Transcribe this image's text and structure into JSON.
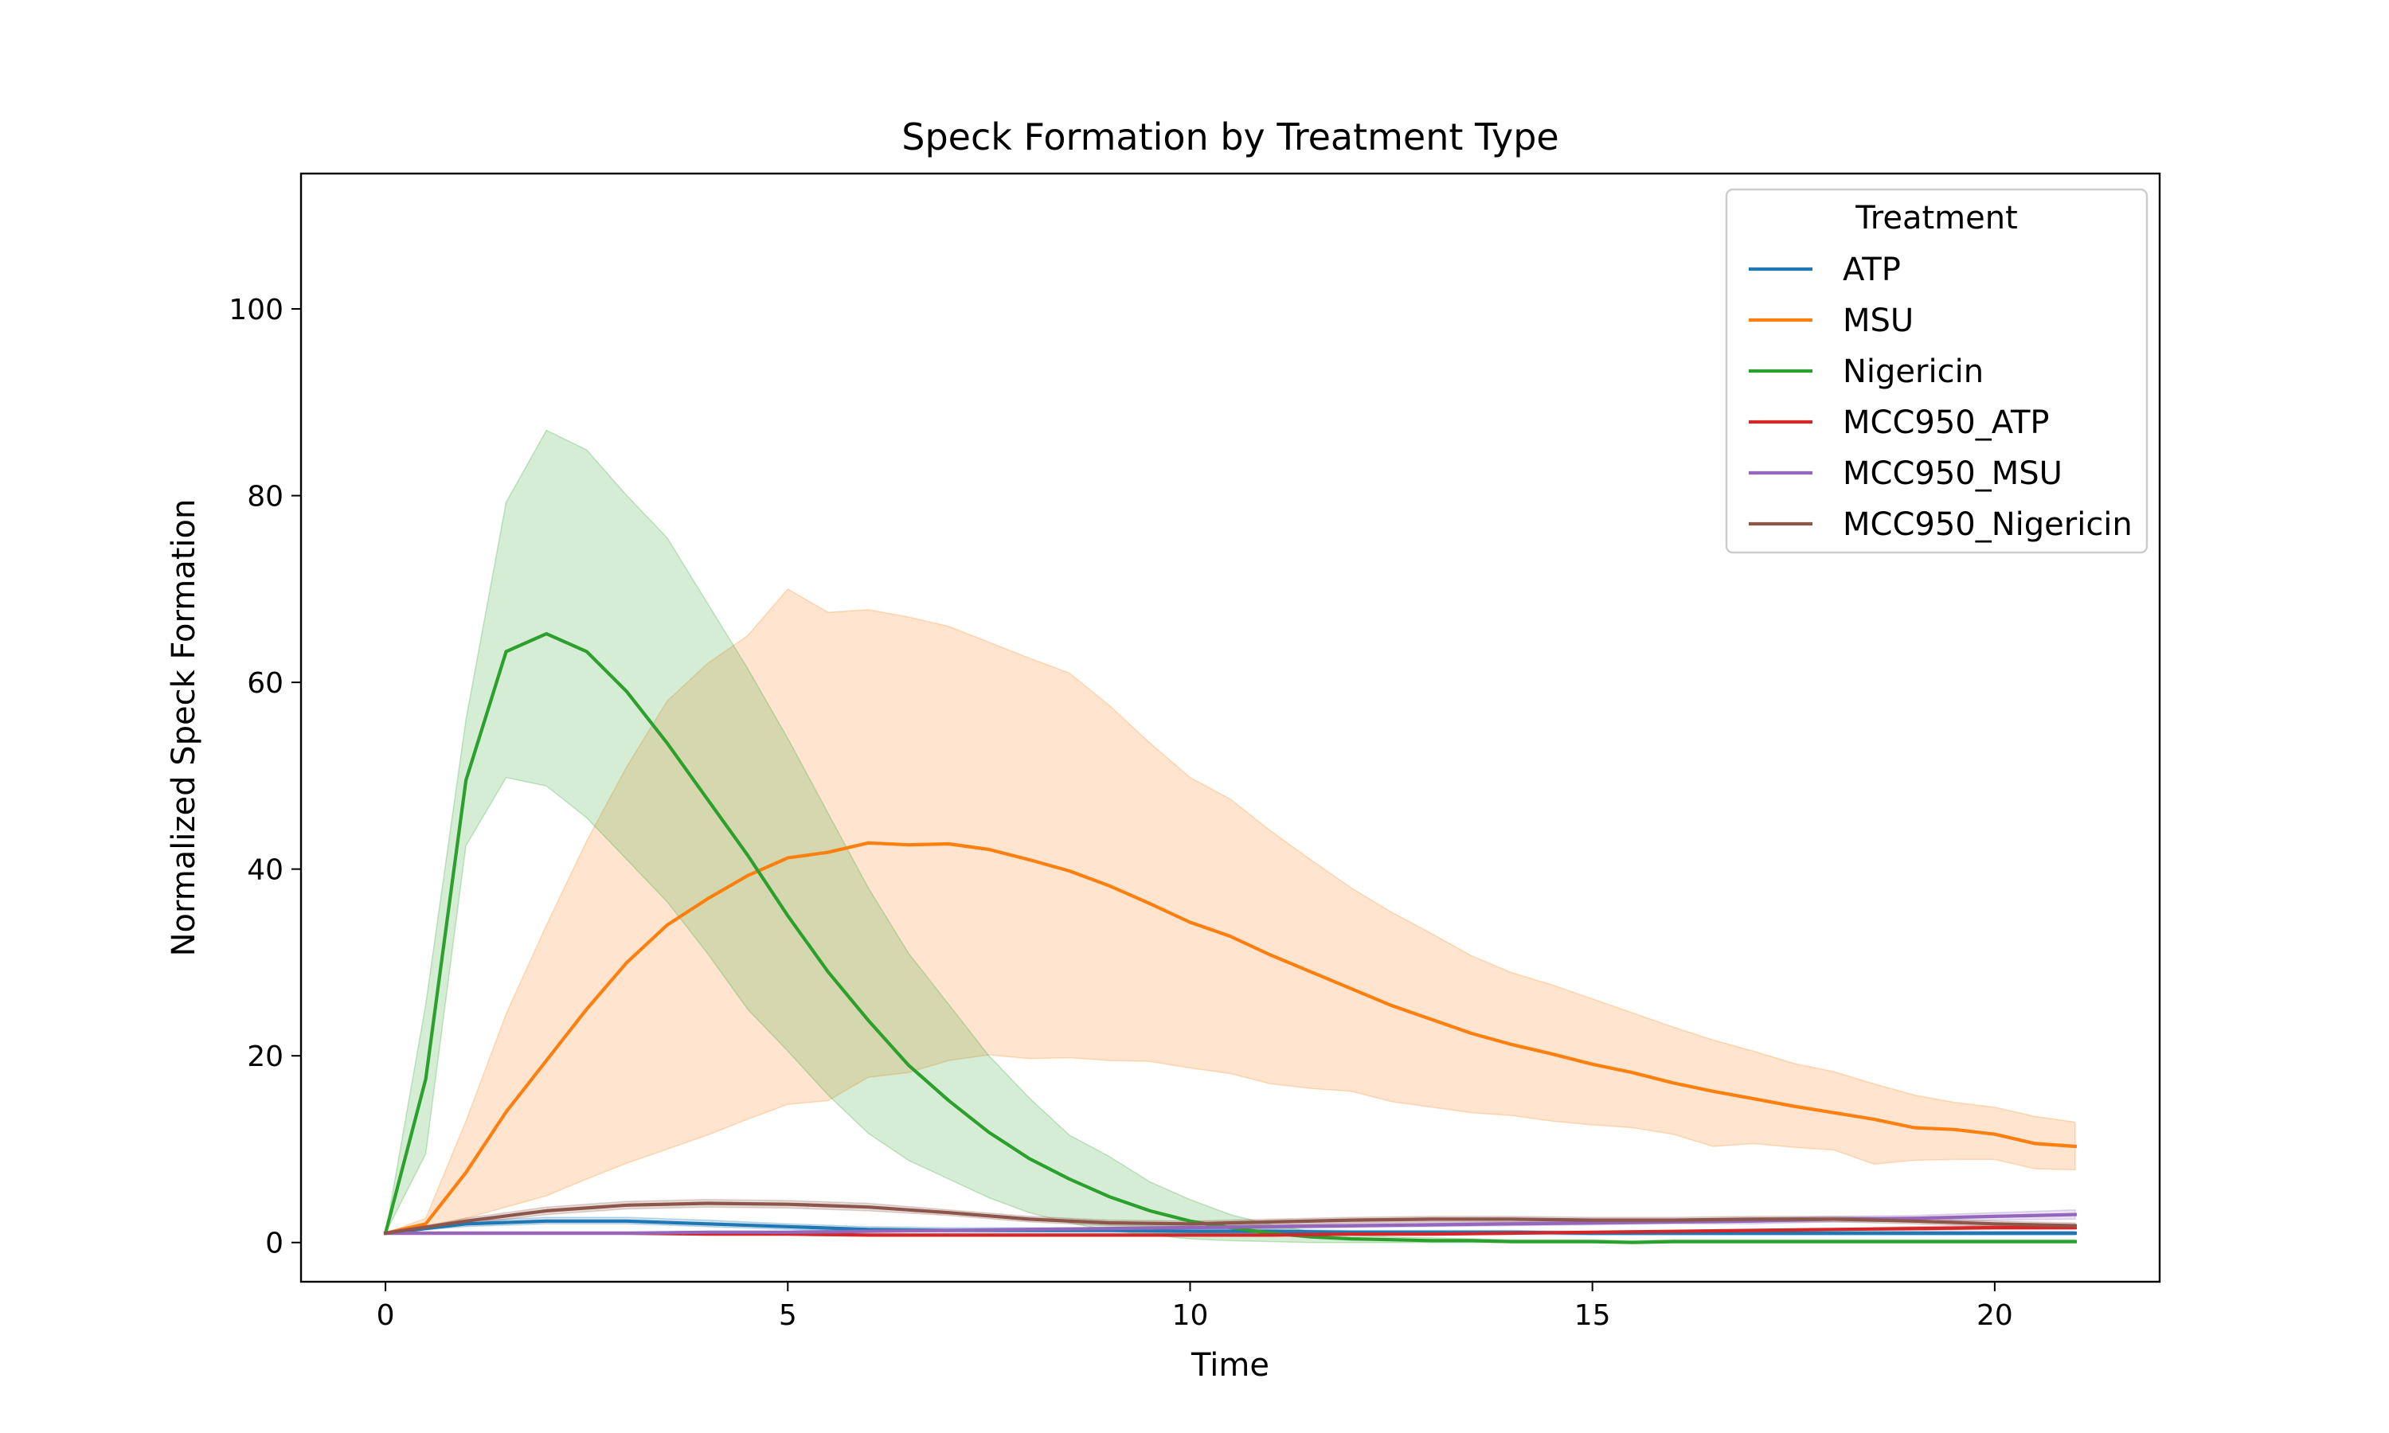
{
  "chart_data": {
    "type": "line",
    "title": "Speck Formation by Treatment Type",
    "xlabel": "Time",
    "ylabel": "Normalized Speck Formation",
    "xlim": [
      -1.05,
      22.05
    ],
    "ylim": [
      -4.2,
      114.5
    ],
    "xticks": [
      0,
      5,
      10,
      15,
      20
    ],
    "yticks": [
      0,
      20,
      40,
      60,
      80,
      100
    ],
    "grid": false,
    "legend": {
      "title": "Treatment",
      "placement": "top-right"
    },
    "series": [
      {
        "name": "ATP",
        "color": "#1f77b4",
        "x": [
          0,
          1,
          2,
          3,
          4,
          5,
          6,
          7,
          8,
          9,
          10,
          11,
          12,
          13,
          14,
          15,
          16,
          17,
          18,
          19,
          20,
          21
        ],
        "y": [
          1.0,
          2.0,
          2.3,
          2.3,
          2.0,
          1.7,
          1.4,
          1.3,
          1.3,
          1.3,
          1.2,
          1.2,
          1.1,
          1.1,
          1.1,
          1.0,
          1.0,
          1.0,
          1.0,
          1.0,
          1.0,
          1.0
        ],
        "lower": [
          1.0,
          1.7,
          2.0,
          2.0,
          1.7,
          1.4,
          1.2,
          1.1,
          1.1,
          1.1,
          1.0,
          1.0,
          0.9,
          0.9,
          0.9,
          0.8,
          0.8,
          0.8,
          0.8,
          0.8,
          0.8,
          0.8
        ],
        "upper": [
          1.0,
          2.3,
          2.7,
          2.7,
          2.4,
          2.0,
          1.7,
          1.6,
          1.6,
          1.6,
          1.5,
          1.4,
          1.3,
          1.3,
          1.3,
          1.2,
          1.2,
          1.2,
          1.2,
          1.2,
          1.2,
          1.2
        ]
      },
      {
        "name": "MSU",
        "color": "#ff7f0e",
        "x": [
          0,
          0.5,
          1,
          1.5,
          2,
          2.5,
          3,
          3.5,
          4,
          4.5,
          5,
          5.5,
          6,
          6.5,
          7,
          7.5,
          8,
          8.5,
          9,
          9.5,
          10,
          10.5,
          11,
          11.5,
          12,
          12.5,
          13,
          13.5,
          14,
          14.5,
          15,
          15.5,
          16,
          16.5,
          17,
          17.5,
          18,
          18.5,
          19,
          19.5,
          20,
          20.5,
          21
        ],
        "y": [
          1.0,
          2.0,
          7.5,
          14.0,
          19.5,
          25.0,
          30.0,
          34.0,
          36.8,
          39.3,
          41.2,
          41.8,
          42.8,
          42.6,
          42.7,
          42.1,
          41.0,
          39.8,
          38.2,
          36.3,
          34.3,
          32.8,
          30.8,
          29.0,
          27.2,
          25.4,
          23.9,
          22.4,
          21.2,
          20.2,
          19.1,
          18.2,
          17.1,
          16.2,
          15.4,
          14.6,
          13.9,
          13.2,
          12.3,
          12.1,
          11.6,
          10.6,
          10.3
        ],
        "lower": [
          1.0,
          1.7,
          2.6,
          3.8,
          5.0,
          6.8,
          8.5,
          10.0,
          11.5,
          13.2,
          14.8,
          15.2,
          17.7,
          18.2,
          19.5,
          20.1,
          19.7,
          19.8,
          19.5,
          19.4,
          18.7,
          18.1,
          17.0,
          16.5,
          16.2,
          15.1,
          14.5,
          13.9,
          13.6,
          13.0,
          12.6,
          12.3,
          11.6,
          10.3,
          10.6,
          10.2,
          9.9,
          8.4,
          8.8,
          8.9,
          8.9,
          7.9,
          7.8
        ],
        "upper": [
          1.0,
          2.6,
          13.0,
          24.5,
          34.0,
          43.0,
          51.0,
          58.0,
          62.0,
          65.0,
          70.0,
          67.5,
          67.8,
          67.0,
          66.0,
          64.3,
          62.6,
          61.0,
          57.5,
          53.5,
          49.8,
          47.5,
          44.1,
          41.0,
          38.0,
          35.4,
          33.1,
          30.7,
          28.9,
          27.6,
          26.1,
          24.6,
          23.1,
          21.7,
          20.5,
          19.2,
          18.3,
          17.0,
          15.8,
          15.0,
          14.5,
          13.5,
          12.9
        ]
      },
      {
        "name": "Nigericin",
        "color": "#2ca02c",
        "x": [
          0,
          0.5,
          1,
          1.5,
          2,
          2.5,
          3,
          3.5,
          4,
          4.5,
          5,
          5.5,
          6,
          6.5,
          7,
          7.5,
          8,
          8.5,
          9,
          9.5,
          10,
          10.5,
          11,
          11.5,
          12,
          12.5,
          13,
          13.5,
          14,
          14.5,
          15,
          15.5,
          16,
          16.5,
          17,
          17.5,
          18,
          18.5,
          19,
          19.5,
          20,
          20.5,
          21
        ],
        "y": [
          1.0,
          17.5,
          49.5,
          63.3,
          65.2,
          63.3,
          59.0,
          53.5,
          47.5,
          41.5,
          35.0,
          29.0,
          23.8,
          19.0,
          15.2,
          11.8,
          9.0,
          6.8,
          4.9,
          3.4,
          2.3,
          1.6,
          1.0,
          0.6,
          0.4,
          0.3,
          0.2,
          0.2,
          0.1,
          0.1,
          0.1,
          0.0,
          0.1,
          0.1,
          0.1,
          0.1,
          0.1,
          0.1,
          0.1,
          0.1,
          0.1,
          0.1,
          0.1
        ],
        "lower": [
          1.0,
          9.5,
          42.5,
          49.8,
          48.9,
          45.5,
          41.0,
          36.5,
          31.0,
          25.0,
          20.5,
          15.8,
          11.7,
          8.8,
          6.8,
          4.8,
          3.2,
          2.1,
          1.3,
          0.8,
          0.4,
          0.2,
          0.1,
          0.0,
          0.0,
          0.0,
          0.0,
          0.0,
          0.0,
          0.0,
          0.0,
          0.0,
          0.0,
          0.0,
          0.0,
          0.0,
          0.0,
          0.0,
          0.0,
          0.0,
          0.0,
          0.0,
          0.0
        ],
        "upper": [
          1.0,
          25.5,
          56.0,
          79.3,
          87.0,
          84.9,
          80.0,
          75.5,
          68.5,
          61.5,
          54.0,
          46.0,
          38.0,
          31.0,
          25.5,
          20.0,
          15.5,
          11.5,
          9.2,
          6.5,
          4.6,
          3.0,
          1.9,
          1.2,
          0.8,
          0.6,
          0.5,
          0.4,
          0.3,
          0.3,
          0.3,
          0.2,
          0.3,
          0.3,
          0.3,
          0.3,
          0.3,
          0.3,
          0.3,
          0.3,
          0.3,
          0.3,
          0.3
        ]
      },
      {
        "name": "MCC950_ATP",
        "color": "#d62728",
        "x": [
          0,
          1,
          2,
          3,
          4,
          5,
          6,
          7,
          8,
          9,
          10,
          11,
          12,
          13,
          14,
          15,
          16,
          17,
          18,
          19,
          20,
          21
        ],
        "y": [
          1.0,
          1.0,
          1.0,
          1.0,
          0.9,
          0.9,
          0.8,
          0.8,
          0.8,
          0.8,
          0.8,
          0.8,
          0.9,
          0.9,
          1.0,
          1.1,
          1.2,
          1.3,
          1.4,
          1.5,
          1.6,
          1.6
        ],
        "lower": [
          1.0,
          0.9,
          0.9,
          0.9,
          0.8,
          0.8,
          0.7,
          0.7,
          0.7,
          0.7,
          0.7,
          0.7,
          0.8,
          0.8,
          0.9,
          1.0,
          1.1,
          1.2,
          1.3,
          1.3,
          1.4,
          1.4
        ],
        "upper": [
          1.0,
          1.1,
          1.1,
          1.1,
          1.0,
          1.0,
          0.9,
          0.9,
          0.9,
          0.9,
          0.9,
          0.9,
          1.0,
          1.0,
          1.1,
          1.2,
          1.3,
          1.4,
          1.5,
          1.7,
          1.8,
          1.8
        ]
      },
      {
        "name": "MCC950_MSU",
        "color": "#9467bd",
        "x": [
          0,
          1,
          2,
          3,
          4,
          5,
          6,
          7,
          8,
          9,
          10,
          11,
          12,
          13,
          14,
          15,
          16,
          17,
          18,
          19,
          20,
          21
        ],
        "y": [
          1.0,
          1.0,
          1.0,
          1.0,
          1.1,
          1.1,
          1.2,
          1.3,
          1.4,
          1.5,
          1.6,
          1.7,
          1.8,
          1.9,
          2.0,
          2.1,
          2.2,
          2.3,
          2.5,
          2.6,
          2.8,
          3.0
        ],
        "lower": [
          1.0,
          0.9,
          0.9,
          0.9,
          1.0,
          1.0,
          1.1,
          1.2,
          1.3,
          1.4,
          1.4,
          1.5,
          1.6,
          1.7,
          1.8,
          1.9,
          2.0,
          2.0,
          2.2,
          2.3,
          2.4,
          2.5
        ],
        "upper": [
          1.0,
          1.1,
          1.1,
          1.1,
          1.2,
          1.2,
          1.3,
          1.4,
          1.5,
          1.6,
          1.8,
          1.9,
          2.0,
          2.1,
          2.2,
          2.3,
          2.4,
          2.6,
          2.8,
          2.9,
          3.2,
          3.5
        ]
      },
      {
        "name": "MCC950_Nigericin",
        "color": "#8c564b",
        "x": [
          0,
          1,
          2,
          3,
          4,
          5,
          6,
          7,
          8,
          9,
          10,
          11,
          12,
          13,
          14,
          15,
          16,
          17,
          18,
          19,
          20,
          21
        ],
        "y": [
          1.0,
          2.3,
          3.4,
          4.0,
          4.2,
          4.1,
          3.8,
          3.2,
          2.5,
          2.1,
          2.0,
          2.2,
          2.4,
          2.5,
          2.5,
          2.4,
          2.4,
          2.5,
          2.5,
          2.3,
          2.0,
          1.8
        ],
        "lower": [
          1.0,
          2.0,
          3.0,
          3.6,
          3.8,
          3.7,
          3.4,
          2.9,
          2.2,
          1.8,
          1.7,
          1.9,
          2.1,
          2.2,
          2.2,
          2.1,
          2.1,
          2.2,
          2.2,
          2.0,
          1.7,
          1.5
        ],
        "upper": [
          1.0,
          2.6,
          3.8,
          4.4,
          4.6,
          4.5,
          4.2,
          3.5,
          2.8,
          2.4,
          2.3,
          2.5,
          2.7,
          2.8,
          2.8,
          2.7,
          2.7,
          2.8,
          2.8,
          2.6,
          2.3,
          2.1
        ]
      }
    ]
  }
}
